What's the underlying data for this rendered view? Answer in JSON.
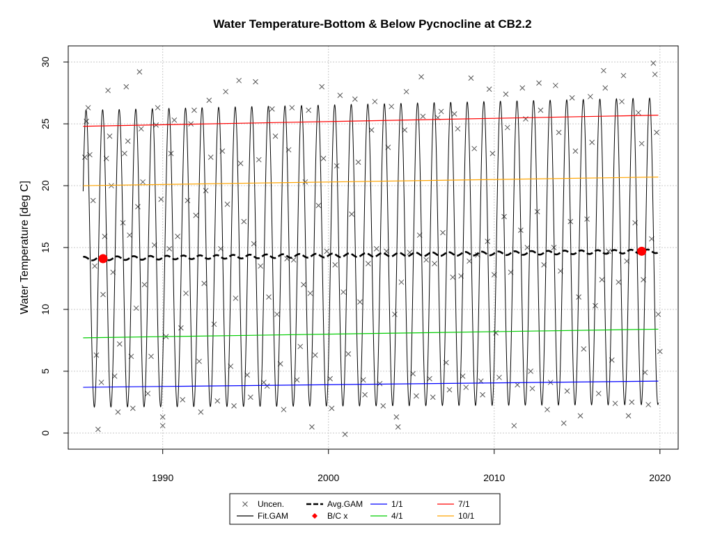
{
  "chart_data": {
    "type": "line",
    "title": "Water Temperature-Bottom & Below Pycnocline at CB2.2",
    "xlabel": "",
    "ylabel": "Water Temperature [deg C]",
    "xlim": [
      1984.3,
      2021.1
    ],
    "ylim": [
      -1.3,
      31.3
    ],
    "x_ticks": [
      1990,
      2000,
      2010,
      2020
    ],
    "y_ticks": [
      0,
      5,
      10,
      15,
      20,
      25,
      30
    ],
    "grid": true,
    "legend_position": "bottom",
    "series": [
      {
        "name": "1/1",
        "color": "#0000ff",
        "x": [
          1985.2,
          2019.9
        ],
        "values": [
          3.7,
          4.2
        ]
      },
      {
        "name": "4/1",
        "color": "#00cd00",
        "x": [
          1985.2,
          2019.9
        ],
        "values": [
          7.7,
          8.4
        ]
      },
      {
        "name": "7/1",
        "color": "#ff0000",
        "x": [
          1985.2,
          2019.9
        ],
        "values": [
          24.8,
          25.7
        ]
      },
      {
        "name": "10/1",
        "color": "#ffa500",
        "x": [
          1985.2,
          2019.9
        ],
        "values": [
          20.0,
          20.7
        ]
      },
      {
        "name": "Avg.GAM",
        "color": "#000000",
        "x": [
          1985.2,
          2019.9
        ],
        "values": [
          14.1,
          14.7
        ]
      },
      {
        "name": "Fit.GAM",
        "color": "#000000",
        "x_start": 1985.2,
        "x_end": 2019.9,
        "mean_start": 14.1,
        "mean_end": 14.7,
        "amplitude_start": 12.0,
        "amplitude_end": 12.4,
        "period_years": 1
      },
      {
        "name": "B/C x",
        "color": "#ff0000",
        "x": [
          1986.4,
          2018.9
        ],
        "values": [
          14.1,
          14.7
        ]
      }
    ],
    "uncensored_points": [
      [
        1985.3,
        22.3
      ],
      [
        1985.4,
        25.2
      ],
      [
        1985.5,
        26.3
      ],
      [
        1985.6,
        22.5
      ],
      [
        1985.8,
        18.8
      ],
      [
        1985.9,
        13.5
      ],
      [
        1986.0,
        6.3
      ],
      [
        1986.1,
        0.3
      ],
      [
        1986.3,
        4.1
      ],
      [
        1986.4,
        11.2
      ],
      [
        1986.5,
        15.9
      ],
      [
        1986.6,
        22.2
      ],
      [
        1986.7,
        27.7
      ],
      [
        1986.8,
        24.0
      ],
      [
        1986.9,
        20.0
      ],
      [
        1987.0,
        13.0
      ],
      [
        1987.1,
        4.6
      ],
      [
        1987.3,
        1.7
      ],
      [
        1987.4,
        7.2
      ],
      [
        1987.6,
        17.0
      ],
      [
        1987.7,
        22.6
      ],
      [
        1987.8,
        28.0
      ],
      [
        1987.9,
        23.6
      ],
      [
        1988.0,
        16.0
      ],
      [
        1988.1,
        6.2
      ],
      [
        1988.2,
        2.0
      ],
      [
        1988.4,
        10.1
      ],
      [
        1988.5,
        18.3
      ],
      [
        1988.6,
        29.2
      ],
      [
        1988.7,
        24.6
      ],
      [
        1988.8,
        20.3
      ],
      [
        1988.9,
        12.0
      ],
      [
        1989.1,
        3.2
      ],
      [
        1989.3,
        6.2
      ],
      [
        1989.5,
        15.2
      ],
      [
        1989.6,
        24.9
      ],
      [
        1989.7,
        26.3
      ],
      [
        1989.9,
        18.9
      ],
      [
        1990.0,
        1.3
      ],
      [
        1990.0,
        0.6
      ],
      [
        1990.2,
        7.8
      ],
      [
        1990.4,
        14.9
      ],
      [
        1990.5,
        22.6
      ],
      [
        1990.7,
        25.3
      ],
      [
        1990.9,
        15.9
      ],
      [
        1991.1,
        8.5
      ],
      [
        1991.2,
        2.7
      ],
      [
        1991.4,
        11.3
      ],
      [
        1991.5,
        18.8
      ],
      [
        1991.7,
        25.0
      ],
      [
        1991.9,
        26.1
      ],
      [
        1992.0,
        17.6
      ],
      [
        1992.2,
        5.8
      ],
      [
        1992.3,
        1.7
      ],
      [
        1992.5,
        12.1
      ],
      [
        1992.6,
        19.6
      ],
      [
        1992.8,
        26.9
      ],
      [
        1992.9,
        22.3
      ],
      [
        1993.1,
        8.8
      ],
      [
        1993.3,
        2.6
      ],
      [
        1993.5,
        14.9
      ],
      [
        1993.6,
        22.8
      ],
      [
        1993.8,
        27.6
      ],
      [
        1993.9,
        18.5
      ],
      [
        1994.1,
        5.4
      ],
      [
        1994.3,
        2.2
      ],
      [
        1994.4,
        10.9
      ],
      [
        1994.6,
        28.5
      ],
      [
        1994.7,
        21.8
      ],
      [
        1994.9,
        17.1
      ],
      [
        1995.1,
        4.7
      ],
      [
        1995.3,
        2.9
      ],
      [
        1995.5,
        15.3
      ],
      [
        1995.6,
        28.4
      ],
      [
        1995.8,
        22.1
      ],
      [
        1995.9,
        13.5
      ],
      [
        1996.1,
        4.1
      ],
      [
        1996.3,
        3.8
      ],
      [
        1996.4,
        11.0
      ],
      [
        1996.6,
        26.2
      ],
      [
        1996.8,
        24.0
      ],
      [
        1996.9,
        9.6
      ],
      [
        1997.1,
        5.6
      ],
      [
        1997.3,
        1.9
      ],
      [
        1997.5,
        14.1
      ],
      [
        1997.6,
        22.9
      ],
      [
        1997.8,
        26.3
      ],
      [
        1997.9,
        14.0
      ],
      [
        1998.1,
        4.3
      ],
      [
        1998.3,
        7.0
      ],
      [
        1998.5,
        12.0
      ],
      [
        1998.6,
        20.3
      ],
      [
        1998.8,
        26.1
      ],
      [
        1998.9,
        11.3
      ],
      [
        1999.0,
        0.5
      ],
      [
        1999.2,
        6.3
      ],
      [
        1999.4,
        18.4
      ],
      [
        1999.6,
        28.0
      ],
      [
        1999.7,
        22.2
      ],
      [
        1999.9,
        14.7
      ],
      [
        2000.1,
        4.4
      ],
      [
        2000.2,
        2.0
      ],
      [
        2000.4,
        13.6
      ],
      [
        2000.5,
        21.6
      ],
      [
        2000.7,
        27.3
      ],
      [
        2000.9,
        11.4
      ],
      [
        2001.0,
        -0.1
      ],
      [
        2001.2,
        6.4
      ],
      [
        2001.4,
        17.7
      ],
      [
        2001.6,
        27.0
      ],
      [
        2001.8,
        21.9
      ],
      [
        2001.9,
        10.6
      ],
      [
        2002.1,
        4.3
      ],
      [
        2002.2,
        3.1
      ],
      [
        2002.4,
        13.7
      ],
      [
        2002.6,
        24.5
      ],
      [
        2002.8,
        26.8
      ],
      [
        2002.9,
        14.9
      ],
      [
        2003.1,
        4.0
      ],
      [
        2003.3,
        2.2
      ],
      [
        2003.5,
        14.7
      ],
      [
        2003.6,
        23.1
      ],
      [
        2003.8,
        26.4
      ],
      [
        2004.0,
        9.6
      ],
      [
        2004.1,
        1.3
      ],
      [
        2004.2,
        0.5
      ],
      [
        2004.4,
        12.2
      ],
      [
        2004.6,
        24.5
      ],
      [
        2004.7,
        27.6
      ],
      [
        2004.9,
        14.6
      ],
      [
        2005.1,
        4.8
      ],
      [
        2005.3,
        3.0
      ],
      [
        2005.5,
        16.0
      ],
      [
        2005.6,
        28.8
      ],
      [
        2005.7,
        25.6
      ],
      [
        2005.9,
        14.0
      ],
      [
        2006.1,
        4.4
      ],
      [
        2006.3,
        2.9
      ],
      [
        2006.4,
        13.7
      ],
      [
        2006.6,
        25.5
      ],
      [
        2006.8,
        26.0
      ],
      [
        2006.9,
        16.2
      ],
      [
        2007.1,
        5.7
      ],
      [
        2007.3,
        3.5
      ],
      [
        2007.5,
        12.6
      ],
      [
        2007.6,
        25.8
      ],
      [
        2007.8,
        24.6
      ],
      [
        2008.0,
        12.7
      ],
      [
        2008.1,
        4.6
      ],
      [
        2008.3,
        3.7
      ],
      [
        2008.5,
        13.9
      ],
      [
        2008.6,
        28.7
      ],
      [
        2008.8,
        23.0
      ],
      [
        2009.0,
        14.4
      ],
      [
        2009.2,
        4.2
      ],
      [
        2009.3,
        3.1
      ],
      [
        2009.6,
        15.5
      ],
      [
        2009.7,
        27.8
      ],
      [
        2009.9,
        22.6
      ],
      [
        2010.0,
        12.8
      ],
      [
        2010.1,
        8.1
      ],
      [
        2010.3,
        4.5
      ],
      [
        2010.6,
        17.5
      ],
      [
        2010.7,
        27.4
      ],
      [
        2010.8,
        24.7
      ],
      [
        2011.0,
        13.0
      ],
      [
        2011.2,
        0.6
      ],
      [
        2011.4,
        3.9
      ],
      [
        2011.6,
        16.4
      ],
      [
        2011.7,
        27.9
      ],
      [
        2011.9,
        25.4
      ],
      [
        2012.0,
        15.0
      ],
      [
        2012.2,
        5.0
      ],
      [
        2012.3,
        3.6
      ],
      [
        2012.6,
        17.9
      ],
      [
        2012.7,
        28.3
      ],
      [
        2012.8,
        26.1
      ],
      [
        2013.0,
        13.6
      ],
      [
        2013.2,
        1.9
      ],
      [
        2013.4,
        4.1
      ],
      [
        2013.6,
        15.0
      ],
      [
        2013.7,
        28.1
      ],
      [
        2013.9,
        24.3
      ],
      [
        2014.0,
        13.1
      ],
      [
        2014.2,
        0.8
      ],
      [
        2014.4,
        3.4
      ],
      [
        2014.6,
        17.1
      ],
      [
        2014.7,
        27.1
      ],
      [
        2014.9,
        22.8
      ],
      [
        2015.1,
        11.0
      ],
      [
        2015.2,
        1.4
      ],
      [
        2015.4,
        6.8
      ],
      [
        2015.6,
        17.3
      ],
      [
        2015.8,
        27.2
      ],
      [
        2015.9,
        23.5
      ],
      [
        2016.1,
        10.3
      ],
      [
        2016.3,
        3.2
      ],
      [
        2016.5,
        12.4
      ],
      [
        2016.6,
        29.3
      ],
      [
        2016.7,
        27.9
      ],
      [
        2016.9,
        14.7
      ],
      [
        2017.1,
        5.9
      ],
      [
        2017.3,
        2.4
      ],
      [
        2017.5,
        12.2
      ],
      [
        2017.7,
        26.8
      ],
      [
        2017.8,
        28.9
      ],
      [
        2018.0,
        13.9
      ],
      [
        2018.1,
        1.4
      ],
      [
        2018.3,
        2.5
      ],
      [
        2018.5,
        17.0
      ],
      [
        2018.7,
        25.9
      ],
      [
        2018.9,
        23.4
      ],
      [
        2019.0,
        12.4
      ],
      [
        2019.1,
        4.9
      ],
      [
        2019.3,
        2.3
      ],
      [
        2019.5,
        15.7
      ],
      [
        2019.6,
        29.9
      ],
      [
        2019.7,
        29.0
      ],
      [
        2019.8,
        24.3
      ],
      [
        2019.9,
        9.6
      ],
      [
        2020.0,
        6.6
      ]
    ]
  },
  "legend": {
    "items": [
      {
        "label": "Uncen.",
        "symbol": "x",
        "color": "#555555"
      },
      {
        "label": "Fit.GAM",
        "symbol": "line",
        "color": "#000000"
      },
      {
        "label": "Avg.GAM",
        "symbol": "dash",
        "color": "#000000"
      },
      {
        "label": "B/C x",
        "symbol": "diamond",
        "color": "#ff0000"
      },
      {
        "label": "1/1",
        "symbol": "line",
        "color": "#0000ff"
      },
      {
        "label": "4/1",
        "symbol": "line",
        "color": "#00cd00"
      },
      {
        "label": "7/1",
        "symbol": "line",
        "color": "#ff0000"
      },
      {
        "label": "10/1",
        "symbol": "line",
        "color": "#ffa500"
      }
    ]
  }
}
